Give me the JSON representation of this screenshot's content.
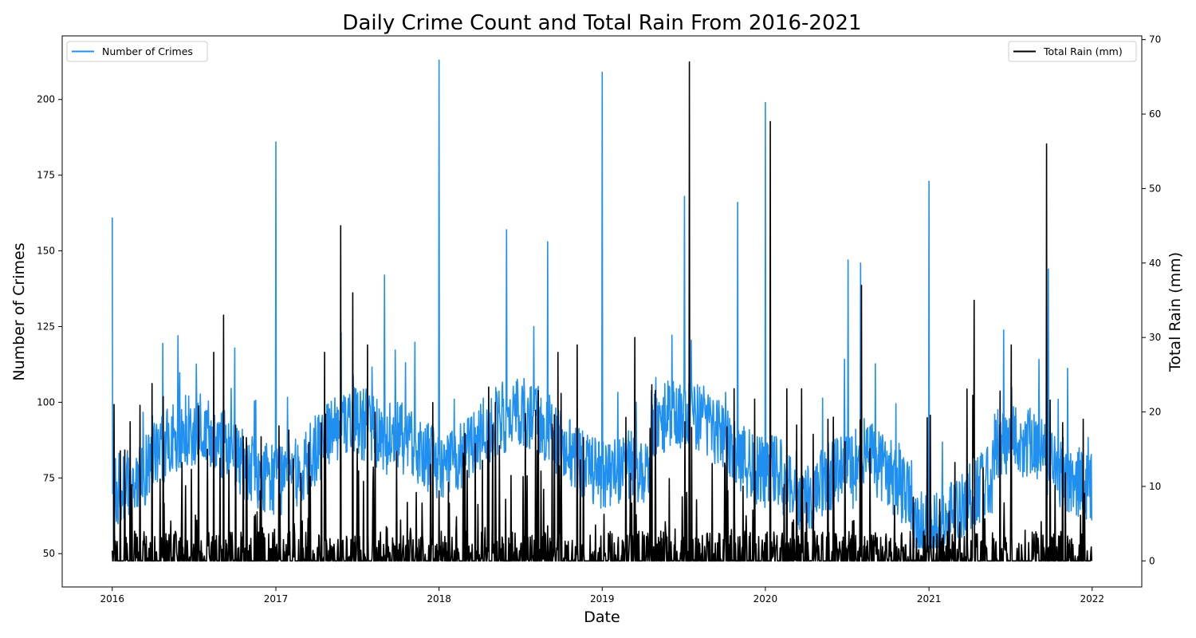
{
  "chart_data": {
    "type": "line",
    "title": "Daily Crime Count and Total Rain From 2016-2021",
    "xlabel": "Date",
    "ylabel": "Number of Crimes",
    "y2label": "Total Rain (mm)",
    "x_range": [
      "2015-09-11",
      "2022-04-22"
    ],
    "x_ticks": [
      "2016",
      "2017",
      "2018",
      "2019",
      "2020",
      "2021",
      "2022"
    ],
    "y_range": [
      39,
      221
    ],
    "y_ticks": [
      50,
      75,
      100,
      125,
      150,
      175,
      200
    ],
    "y2_range": [
      -3.5,
      70.5
    ],
    "y2_ticks": [
      0,
      10,
      20,
      30,
      40,
      50,
      60,
      70
    ],
    "grid": false,
    "series": [
      {
        "name": "Number of Crimes",
        "axis": "left",
        "color": "#1f8ff0",
        "baseline": 80,
        "range": [
          50,
          213
        ],
        "peaks": [
          {
            "date": "2016-01-01",
            "value": 161
          },
          {
            "date": "2016-01-04",
            "value": 53
          },
          {
            "date": "2016-05-27",
            "value": 122
          },
          {
            "date": "2017-01-01",
            "value": 186
          },
          {
            "date": "2017-05-27",
            "value": 123
          },
          {
            "date": "2017-09-01",
            "value": 142
          },
          {
            "date": "2018-01-01",
            "value": 213
          },
          {
            "date": "2018-06-01",
            "value": 157
          },
          {
            "date": "2018-09-01",
            "value": 153
          },
          {
            "date": "2019-01-01",
            "value": 209
          },
          {
            "date": "2019-07-04",
            "value": 168
          },
          {
            "date": "2019-10-31",
            "value": 166
          },
          {
            "date": "2020-01-01",
            "value": 199
          },
          {
            "date": "2020-07-04",
            "value": 147
          },
          {
            "date": "2020-08-01",
            "value": 146
          },
          {
            "date": "2021-01-01",
            "value": 173
          },
          {
            "date": "2021-09-25",
            "value": 144
          },
          {
            "date": "2021-12-31",
            "value": 61
          }
        ]
      },
      {
        "name": "Total Rain (mm)",
        "axis": "right",
        "color": "#000000",
        "baseline": 0,
        "range": [
          0,
          67
        ],
        "peaks": [
          {
            "date": "2016-01-05",
            "value": 21
          },
          {
            "date": "2016-08-15",
            "value": 28
          },
          {
            "date": "2016-09-06",
            "value": 33
          },
          {
            "date": "2017-04-20",
            "value": 28
          },
          {
            "date": "2017-05-26",
            "value": 45
          },
          {
            "date": "2017-06-22",
            "value": 36
          },
          {
            "date": "2017-07-25",
            "value": 29
          },
          {
            "date": "2018-09-24",
            "value": 28
          },
          {
            "date": "2018-11-06",
            "value": 29
          },
          {
            "date": "2019-03-15",
            "value": 30
          },
          {
            "date": "2019-07-15",
            "value": 67
          },
          {
            "date": "2020-01-12",
            "value": 59
          },
          {
            "date": "2020-08-03",
            "value": 37
          },
          {
            "date": "2021-04-12",
            "value": 35
          },
          {
            "date": "2021-07-04",
            "value": 29
          },
          {
            "date": "2021-09-21",
            "value": 56
          }
        ]
      }
    ],
    "legends": [
      {
        "label": "Number of Crimes",
        "color": "#1f8ff0",
        "position": "upper-left"
      },
      {
        "label": "Total Rain (mm)",
        "color": "#000000",
        "position": "upper-right"
      }
    ]
  }
}
